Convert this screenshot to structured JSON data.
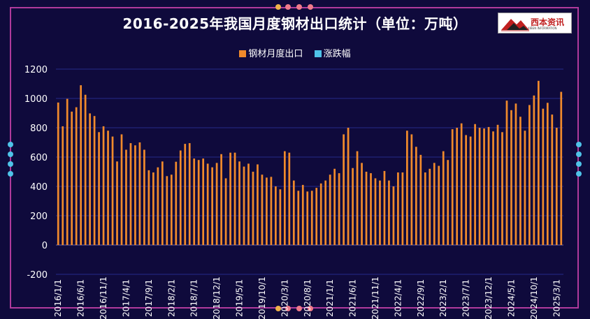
{
  "chart_data": {
    "type": "bar",
    "title": "2016-2025年我国月度钢材出口统计（单位：万吨）",
    "series": [
      {
        "name": "钢材月度出口",
        "color": "#f08a2c",
        "values": [
          972,
          810,
          997,
          910,
          940,
          1090,
          1025,
          898,
          880,
          770,
          810,
          780,
          740,
          570,
          755,
          650,
          695,
          680,
          700,
          650,
          510,
          495,
          530,
          570,
          470,
          480,
          568,
          645,
          690,
          695,
          590,
          580,
          590,
          555,
          530,
          560,
          620,
          455,
          630,
          630,
          570,
          535,
          555,
          500,
          550,
          480,
          460,
          465,
          400,
          380,
          640,
          630,
          440,
          370,
          410,
          365,
          370,
          390,
          420,
          440,
          480,
          520,
          490,
          755,
          800,
          525,
          640,
          560,
          500,
          490,
          455,
          440,
          505,
          440,
          400,
          495,
          495,
          780,
          755,
          670,
          615,
          495,
          520,
          560,
          540,
          640,
          580,
          790,
          800,
          830,
          750,
          740,
          825,
          800,
          795,
          805,
          775,
          820,
          770,
          985,
          920,
          965,
          875,
          780,
          955,
          1020,
          1120,
          930,
          970,
          890,
          800,
          1045
        ]
      },
      {
        "name": "涨跌幅",
        "color": "#4fc3e8",
        "values": []
      }
    ],
    "x_tick_labels": [
      "2016/1/1",
      "2016/6/1",
      "2016/11/1",
      "2017/4/1",
      "2017/9/1",
      "2018/2/1",
      "2018/7/1",
      "2018/12/1",
      "2019/5/1",
      "2019/10/1",
      "2020/3/1",
      "2020/8/1",
      "2021/1/1",
      "2021/6/1",
      "2021/11/1",
      "2022/4/1",
      "2022/9/1",
      "2023/2/1",
      "2023/7/1",
      "2023/12/1",
      "2024/5/1",
      "2024/10/1",
      "2025/3/1"
    ],
    "y_ticks": [
      1200,
      1000,
      800,
      600,
      400,
      200,
      0,
      -200
    ],
    "ylim": [
      -200,
      1200
    ],
    "grid": true,
    "legend_position": "top-center"
  },
  "logo": {
    "text": "西本资讯",
    "subtext": "XIBEN INFORMATION"
  }
}
